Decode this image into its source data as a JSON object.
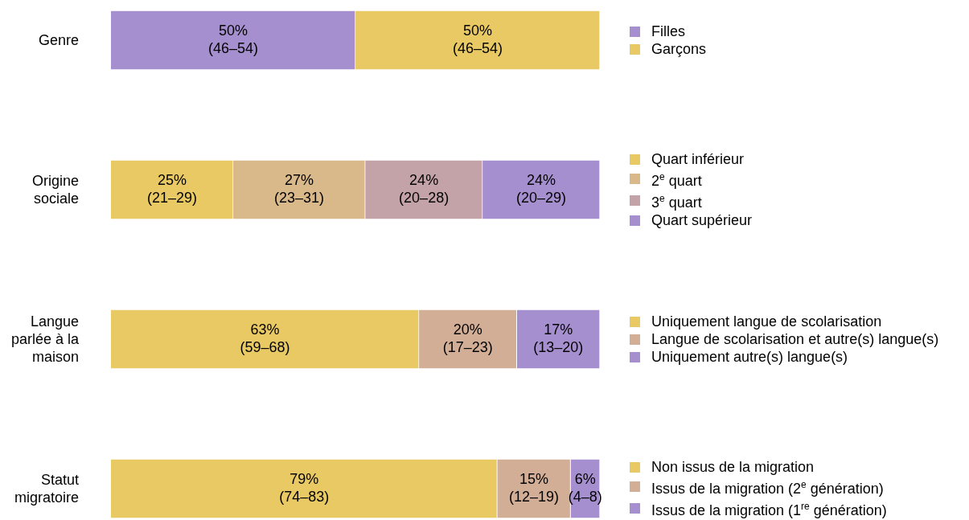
{
  "chart_data": [
    {
      "type": "bar",
      "orientation": "horizontal",
      "stacked": true,
      "legend": "right",
      "categories": [
        "Genre"
      ],
      "series": [
        {
          "name": "Filles",
          "color": "#a68fcf",
          "values": [
            50
          ],
          "value_labels": [
            "50%\n(46–54)"
          ]
        },
        {
          "name": "Garçons",
          "color": "#e9c964",
          "values": [
            50
          ],
          "value_labels": [
            "50%\n(46–54)"
          ]
        }
      ]
    },
    {
      "type": "bar",
      "orientation": "horizontal",
      "stacked": true,
      "legend": "right",
      "categories": [
        "Origine sociale"
      ],
      "series": [
        {
          "name": "Quart inférieur",
          "color": "#e9c964",
          "values": [
            25
          ],
          "value_labels": [
            "25%\n(21–29)"
          ]
        },
        {
          "name": "2$^{e}$ quart",
          "color": "#d9b88a",
          "values": [
            27
          ],
          "value_labels": [
            "27%\n(23–31)"
          ]
        },
        {
          "name": "3$^{e}$ quart",
          "color": "#c4a3a8",
          "values": [
            24
          ],
          "value_labels": [
            "24%\n(20–28)"
          ]
        },
        {
          "name": "Quart supérieur",
          "color": "#a68fcf",
          "values": [
            24
          ],
          "value_labels": [
            "24%\n(20–29)"
          ]
        }
      ]
    },
    {
      "type": "bar",
      "orientation": "horizontal",
      "stacked": true,
      "legend": "right",
      "categories": [
        "Langue parlée à la maison"
      ],
      "series": [
        {
          "name": "Uniquement langue de scolarisation",
          "color": "#e9c964",
          "values": [
            63
          ],
          "value_labels": [
            "63%\n(59–68)"
          ]
        },
        {
          "name": "Langue de scolarisation et autre(s) langue(s)",
          "color": "#d3ae96",
          "values": [
            20
          ],
          "value_labels": [
            "20%\n(17–23)"
          ]
        },
        {
          "name": "Uniquement autre(s) langue(s)",
          "color": "#a68fcf",
          "values": [
            17
          ],
          "value_labels": [
            "17%\n(13–20)"
          ]
        }
      ]
    },
    {
      "type": "bar",
      "orientation": "horizontal",
      "stacked": true,
      "legend": "right",
      "categories": [
        "Statut migratoire"
      ],
      "series": [
        {
          "name": "Non issus de la migration",
          "color": "#e9c964",
          "values": [
            79
          ],
          "value_labels": [
            "79%\n(74–83)"
          ]
        },
        {
          "name": "Issus de la migration (2$^{e}$ génération)",
          "color": "#d3ae96",
          "values": [
            15
          ],
          "value_labels": [
            "15%\n(12–19)"
          ]
        },
        {
          "name": "Issus de la migration (1$^{re}$ génération)",
          "color": "#a68fcf",
          "values": [
            6
          ],
          "value_labels": [
            "6%\n(4–8)"
          ]
        }
      ]
    }
  ]
}
